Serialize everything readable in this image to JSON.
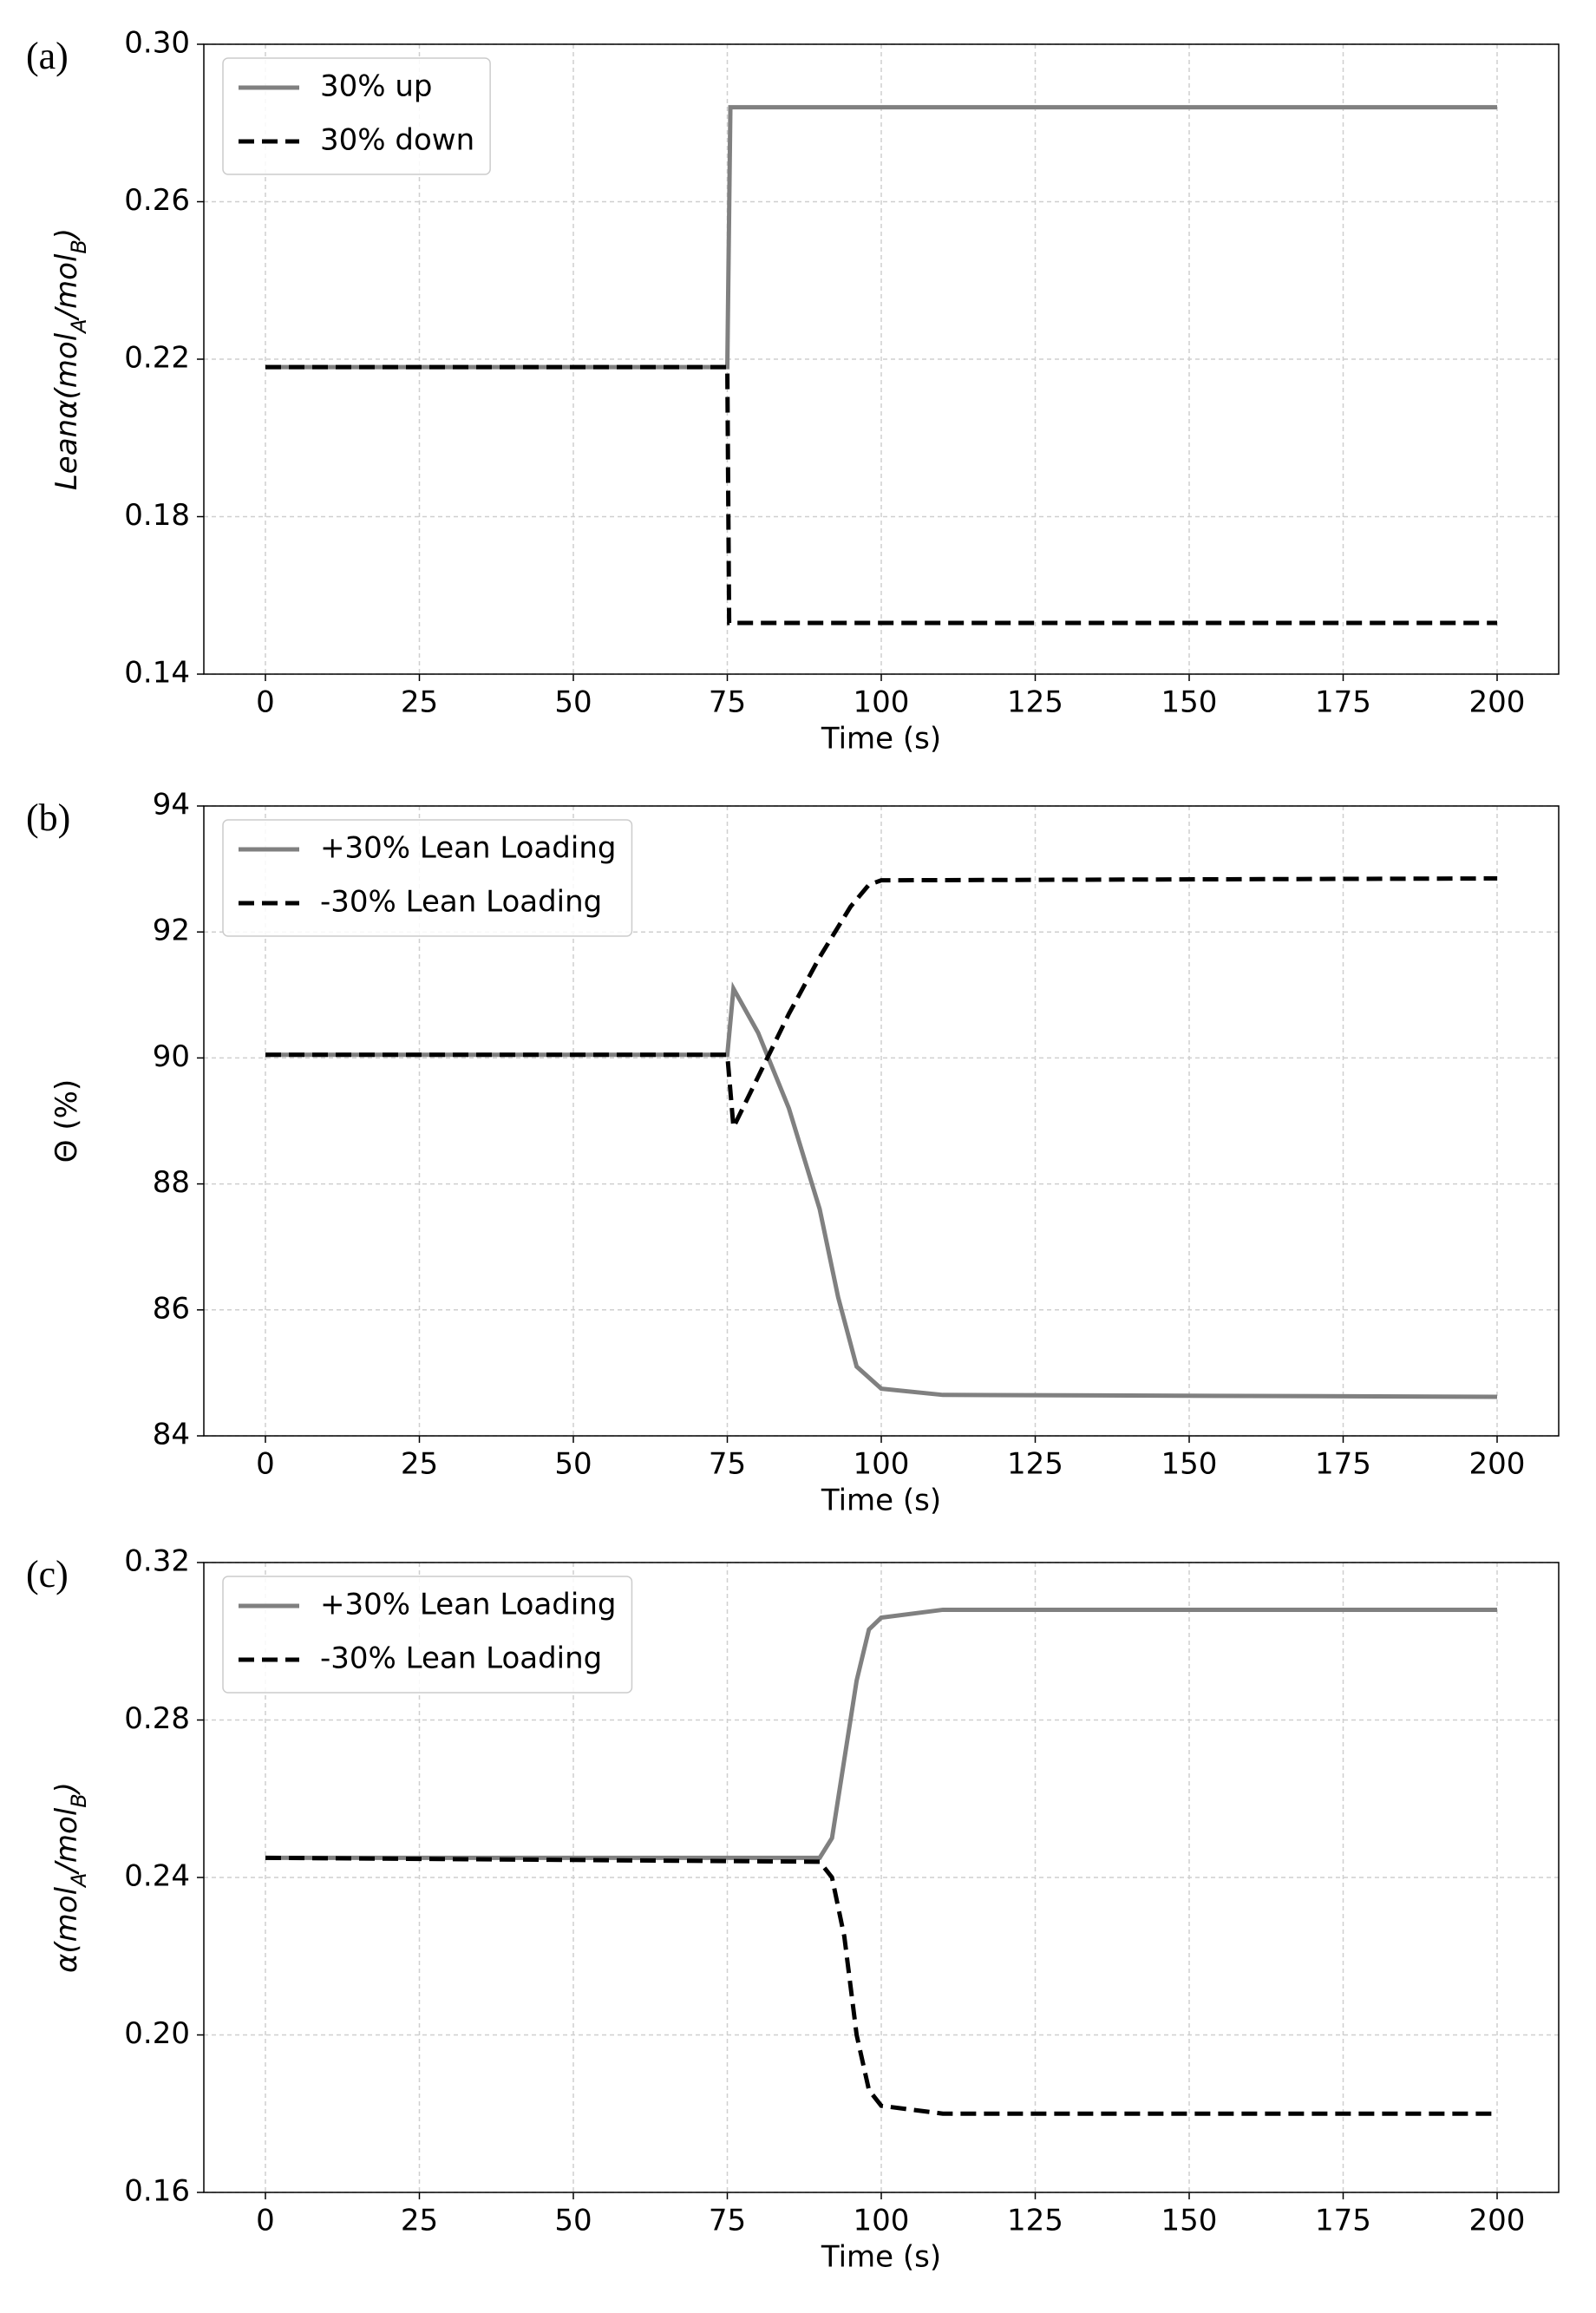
{
  "chart_data": [
    {
      "type": "line",
      "panel_label": "(a)",
      "xlabel": "Time (s)",
      "ylabel": [
        "Leanα(mol",
        "A",
        "/mol",
        "B",
        ")"
      ],
      "xlim": [
        -10,
        210
      ],
      "xticks": [
        0,
        25,
        50,
        75,
        100,
        125,
        150,
        175,
        200
      ],
      "ylim": [
        0.14,
        0.3
      ],
      "yticks": [
        0.14,
        0.18,
        0.22,
        0.26,
        {
          "value": 0.3,
          "label": "0.30"
        }
      ],
      "grid": true,
      "legend": "upper left",
      "series": [
        {
          "name": "30% up",
          "color": "#808080",
          "dash": false,
          "x": [
            0,
            75,
            75.5,
            200
          ],
          "values": [
            0.218,
            0.218,
            0.284,
            0.284
          ]
        },
        {
          "name": "30% down",
          "color": "#000000",
          "dash": true,
          "x": [
            0,
            75,
            75.3,
            200
          ],
          "values": [
            0.218,
            0.218,
            0.153,
            0.153
          ]
        }
      ]
    },
    {
      "type": "line",
      "panel_label": "(b)",
      "xlabel": "Time (s)",
      "ylabel": [
        "Θ (%)"
      ],
      "xlim": [
        -10,
        210
      ],
      "xticks": [
        0,
        25,
        50,
        75,
        100,
        125,
        150,
        175,
        200
      ],
      "ylim": [
        84,
        94
      ],
      "yticks": [
        84,
        86,
        88,
        90,
        92,
        94
      ],
      "grid": true,
      "legend": "upper left",
      "series": [
        {
          "name": "+30% Lean Loading",
          "color": "#808080",
          "dash": false,
          "x": [
            0,
            75,
            76,
            80,
            85,
            90,
            93,
            96,
            100,
            110,
            200
          ],
          "values": [
            90.05,
            90.05,
            91.1,
            90.4,
            89.2,
            87.6,
            86.2,
            85.1,
            84.75,
            84.65,
            84.62
          ]
        },
        {
          "name": "-30% Lean Loading",
          "color": "#000000",
          "dash": true,
          "x": [
            0,
            75,
            76,
            80,
            85,
            90,
            95,
            98,
            100,
            200
          ],
          "values": [
            90.05,
            90.05,
            88.9,
            89.7,
            90.7,
            91.6,
            92.4,
            92.75,
            92.82,
            92.85
          ]
        }
      ]
    },
    {
      "type": "line",
      "panel_label": "(c)",
      "xlabel": "Time (s)",
      "ylabel": [
        "α(mol",
        "A",
        "/mol",
        "B",
        ")"
      ],
      "xlim": [
        -10,
        210
      ],
      "xticks": [
        0,
        25,
        50,
        75,
        100,
        125,
        150,
        175,
        200
      ],
      "ylim": [
        0.16,
        0.32
      ],
      "yticks": [
        0.16,
        {
          "value": 0.2,
          "label": "0.20"
        },
        0.24,
        0.28,
        0.32
      ],
      "grid": true,
      "legend": "upper left",
      "series": [
        {
          "name": "+30% Lean Loading",
          "color": "#808080",
          "dash": false,
          "x": [
            0,
            90,
            92,
            94,
            96,
            98,
            100,
            110,
            200
          ],
          "values": [
            0.245,
            0.245,
            0.25,
            0.27,
            0.29,
            0.303,
            0.306,
            0.308,
            0.308
          ]
        },
        {
          "name": "-30% Lean Loading",
          "color": "#000000",
          "dash": true,
          "x": [
            0,
            90,
            92,
            94,
            96,
            98,
            100,
            110,
            200
          ],
          "values": [
            0.245,
            0.244,
            0.24,
            0.225,
            0.2,
            0.186,
            0.182,
            0.18,
            0.18
          ]
        }
      ]
    }
  ]
}
